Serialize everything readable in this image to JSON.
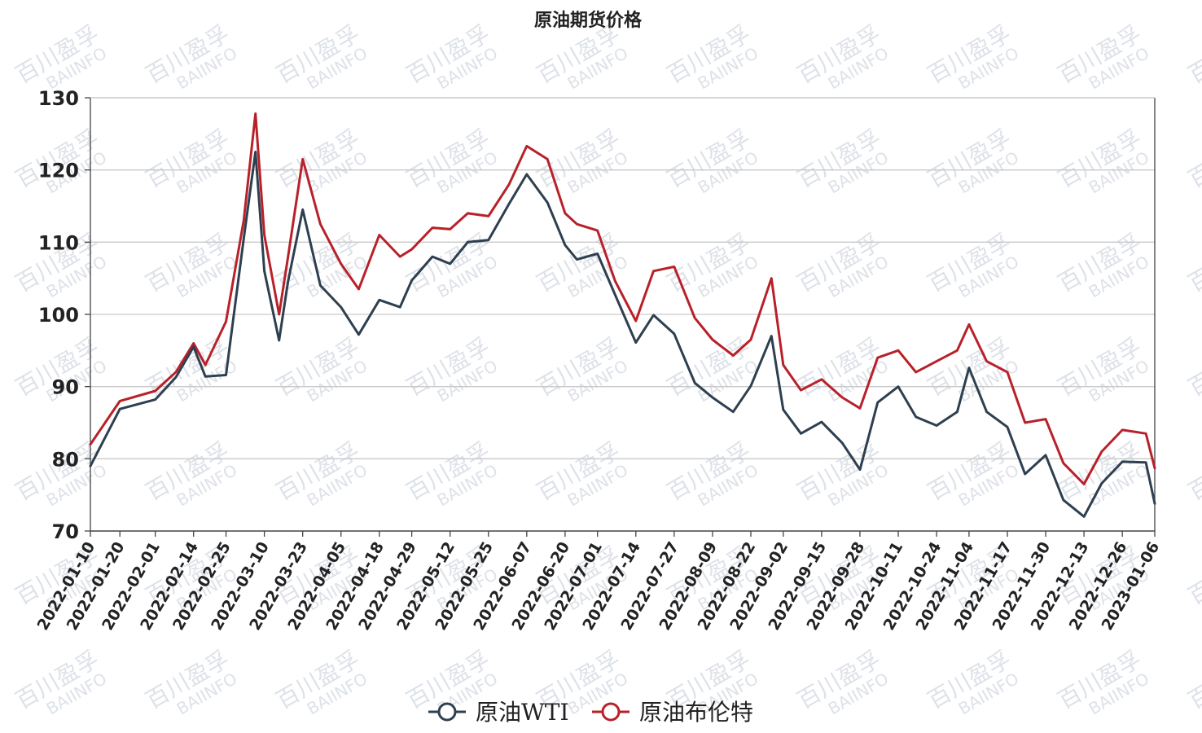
{
  "watermark": {
    "line1": "百川盈孚",
    "line2": "BAIINFO"
  },
  "chart_data": {
    "type": "line",
    "title": "原油期货价格",
    "xlabel": "",
    "ylabel": "",
    "ylim": [
      70,
      130
    ],
    "yticks": [
      70,
      80,
      90,
      100,
      110,
      120,
      130
    ],
    "grid": true,
    "legend_position": "bottom-center",
    "x_tick_labels": [
      "2022-01-10",
      "2022-01-20",
      "2022-02-01",
      "2022-02-14",
      "2022-02-25",
      "2022-03-10",
      "2022-03-23",
      "2022-04-05",
      "2022-04-18",
      "2022-04-29",
      "2022-05-12",
      "2022-05-25",
      "2022-06-07",
      "2022-06-20",
      "2022-07-01",
      "2022-07-14",
      "2022-07-27",
      "2022-08-09",
      "2022-08-22",
      "2022-09-02",
      "2022-09-15",
      "2022-09-28",
      "2022-10-11",
      "2022-10-24",
      "2022-11-04",
      "2022-11-17",
      "2022-11-30",
      "2022-12-13",
      "2022-12-26",
      "2023-01-06"
    ],
    "x": [
      "2022-01-10",
      "2022-01-20",
      "2022-02-01",
      "2022-02-08",
      "2022-02-14",
      "2022-02-18",
      "2022-02-25",
      "2022-03-03",
      "2022-03-07",
      "2022-03-10",
      "2022-03-15",
      "2022-03-18",
      "2022-03-23",
      "2022-03-29",
      "2022-04-05",
      "2022-04-11",
      "2022-04-18",
      "2022-04-25",
      "2022-04-29",
      "2022-05-06",
      "2022-05-12",
      "2022-05-18",
      "2022-05-25",
      "2022-06-01",
      "2022-06-07",
      "2022-06-14",
      "2022-06-20",
      "2022-06-24",
      "2022-07-01",
      "2022-07-07",
      "2022-07-14",
      "2022-07-20",
      "2022-07-27",
      "2022-08-03",
      "2022-08-09",
      "2022-08-16",
      "2022-08-22",
      "2022-08-29",
      "2022-09-02",
      "2022-09-08",
      "2022-09-15",
      "2022-09-22",
      "2022-09-28",
      "2022-10-04",
      "2022-10-11",
      "2022-10-17",
      "2022-10-24",
      "2022-10-31",
      "2022-11-04",
      "2022-11-10",
      "2022-11-17",
      "2022-11-23",
      "2022-11-30",
      "2022-12-06",
      "2022-12-13",
      "2022-12-19",
      "2022-12-26",
      "2023-01-03",
      "2023-01-06"
    ],
    "series": [
      {
        "name": "原油WTI",
        "color": "#2e3f50",
        "values": [
          79.0,
          86.9,
          88.2,
          91.3,
          95.5,
          91.4,
          91.6,
          110.5,
          122.5,
          106.0,
          96.4,
          104.5,
          114.5,
          104.0,
          101.0,
          97.2,
          102.0,
          101.0,
          104.7,
          108.0,
          107.0,
          110.0,
          110.3,
          115.3,
          119.4,
          115.5,
          109.6,
          107.6,
          108.4,
          102.7,
          96.1,
          99.9,
          97.3,
          90.5,
          88.5,
          86.5,
          90.1,
          97.0,
          86.8,
          83.5,
          85.1,
          82.2,
          78.5,
          87.8,
          90.0,
          85.8,
          84.6,
          86.5,
          92.6,
          86.5,
          84.4,
          77.9,
          80.5,
          74.3,
          72.0,
          76.6,
          79.6,
          79.5,
          73.8
        ]
      },
      {
        "name": "原油布伦特",
        "color": "#b8212a",
        "values": [
          82.0,
          88.0,
          89.4,
          92.0,
          96.0,
          93.0,
          99.0,
          113.0,
          127.8,
          111.0,
          100.0,
          107.9,
          121.5,
          112.5,
          107.0,
          103.5,
          111.0,
          108.0,
          109.0,
          112.0,
          111.8,
          114.0,
          113.6,
          118.0,
          123.3,
          121.5,
          114.0,
          112.5,
          111.6,
          104.6,
          99.1,
          106.0,
          106.6,
          99.5,
          96.5,
          94.3,
          96.5,
          105.0,
          93.0,
          89.5,
          91.0,
          88.5,
          87.0,
          94.0,
          95.0,
          92.0,
          93.5,
          95.0,
          98.6,
          93.5,
          92.0,
          85.0,
          85.5,
          79.4,
          76.5,
          81.0,
          84.0,
          83.5,
          78.7
        ]
      }
    ]
  }
}
